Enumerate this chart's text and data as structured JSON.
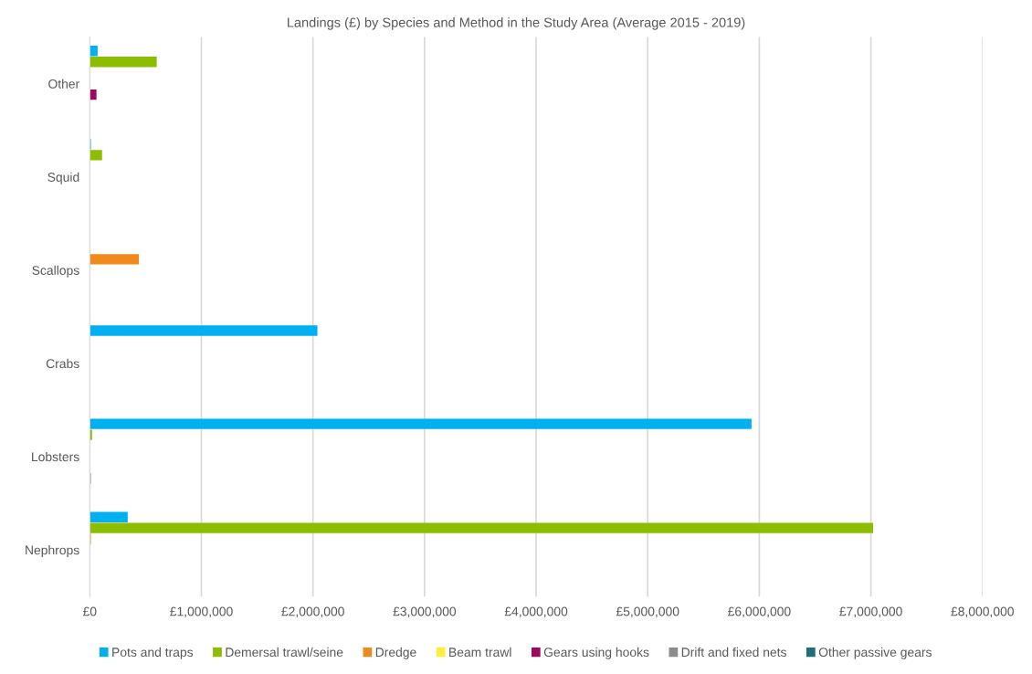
{
  "chart_data": {
    "type": "bar",
    "orientation": "horizontal",
    "title": "Landings (£) by Species and Method in the Study Area (Average 2015 - 2019)",
    "categories": [
      "Other",
      "Squid",
      "Scallops",
      "Crabs",
      "Lobsters",
      "Nephrops"
    ],
    "series": [
      {
        "name": "Pots and traps",
        "color": "#00b0f0",
        "values": [
          70000,
          10000,
          null,
          2040000,
          5930000,
          340000
        ]
      },
      {
        "name": "Demersal trawl/seine",
        "color": "#8cbd00",
        "values": [
          600000,
          110000,
          null,
          null,
          20000,
          7020000
        ]
      },
      {
        "name": "Dredge",
        "color": "#f08a1d",
        "values": [
          null,
          null,
          440000,
          null,
          null,
          10000
        ]
      },
      {
        "name": "Beam trawl",
        "color": "#ffef3a",
        "values": [
          null,
          null,
          null,
          null,
          null,
          null
        ]
      },
      {
        "name": "Gears using hooks",
        "color": "#9b0a5f",
        "values": [
          60000,
          null,
          null,
          null,
          null,
          null
        ]
      },
      {
        "name": "Drift and fixed nets",
        "color": "#8c8c8c",
        "values": [
          null,
          null,
          null,
          null,
          10000,
          null
        ]
      },
      {
        "name": "Other passive gears",
        "color": "#1f6f78",
        "values": [
          null,
          null,
          null,
          null,
          null,
          null
        ]
      }
    ],
    "xlim": [
      0,
      8000000
    ],
    "xticks": [
      {
        "value": 0,
        "label": "£0"
      },
      {
        "value": 1000000,
        "label": "£1,000,000"
      },
      {
        "value": 2000000,
        "label": "£2,000,000"
      },
      {
        "value": 3000000,
        "label": "£3,000,000"
      },
      {
        "value": 4000000,
        "label": "£4,000,000"
      },
      {
        "value": 5000000,
        "label": "£5,000,000"
      },
      {
        "value": 6000000,
        "label": "£6,000,000"
      },
      {
        "value": 7000000,
        "label": "£7,000,000"
      },
      {
        "value": 8000000,
        "label": "£8,000,000"
      }
    ],
    "grid": "x",
    "legend": "bottom"
  }
}
